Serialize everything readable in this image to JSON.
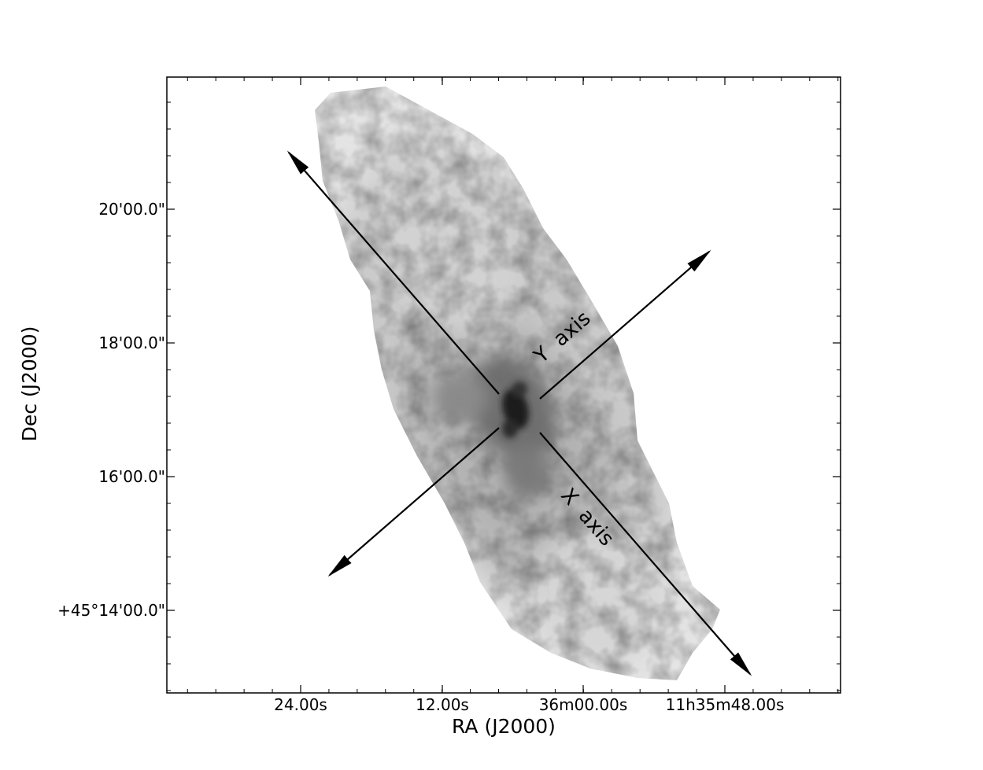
{
  "image": {
    "subject": "grayscale galaxy image",
    "colormap": "gray_r",
    "x_axis": {
      "title": "RA (J2000)",
      "tick_labels": [
        "24.00s",
        "12.00s",
        "36m00.00s",
        "11h35m48.00s"
      ]
    },
    "y_axis": {
      "title": "Dec (J2000)",
      "tick_labels": [
        "20'00.0\"",
        "18'00.0\"",
        "16'00.0\"",
        "+45°14'00.0\""
      ]
    },
    "annotations": {
      "y_axis_label": "Y  axis",
      "x_axis_label": "X  axis"
    }
  }
}
